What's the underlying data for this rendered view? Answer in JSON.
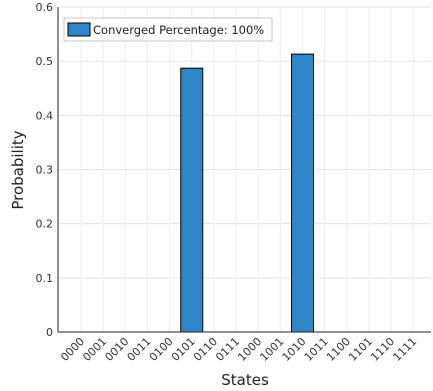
{
  "chart_data": {
    "type": "bar",
    "title": "",
    "xlabel": "States",
    "ylabel": "Probability",
    "categories": [
      "0000",
      "0001",
      "0010",
      "0011",
      "0100",
      "0101",
      "0110",
      "0111",
      "1000",
      "1001",
      "1010",
      "1011",
      "1100",
      "1101",
      "1110",
      "1111"
    ],
    "series": [
      {
        "name": "Converged Percentage: 100%",
        "values": [
          0,
          0,
          0,
          0,
          0,
          0.487,
          0,
          0,
          0,
          0,
          0.513,
          0,
          0,
          0,
          0,
          0
        ],
        "color": "#2e86c8"
      }
    ],
    "ylim": [
      0,
      0.6
    ],
    "yticks": [
      "0",
      "0.1",
      "0.2",
      "0.3",
      "0.4",
      "0.5",
      "0.6"
    ],
    "grid": true,
    "legend_position": "top-left"
  }
}
